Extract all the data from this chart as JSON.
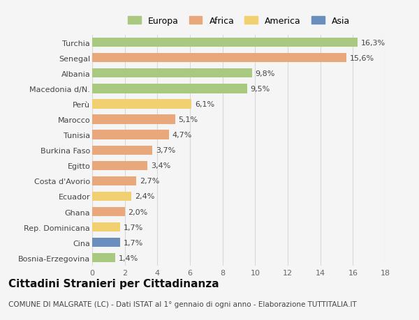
{
  "categories": [
    "Turchia",
    "Senegal",
    "Albania",
    "Macedonia d/N.",
    "Perù",
    "Marocco",
    "Tunisia",
    "Burkina Faso",
    "Egitto",
    "Costa d'Avorio",
    "Ecuador",
    "Ghana",
    "Rep. Dominicana",
    "Cina",
    "Bosnia-Erzegovina"
  ],
  "values": [
    16.3,
    15.6,
    9.8,
    9.5,
    6.1,
    5.1,
    4.7,
    3.7,
    3.4,
    2.7,
    2.4,
    2.0,
    1.7,
    1.7,
    1.4
  ],
  "labels": [
    "16,3%",
    "15,6%",
    "9,8%",
    "9,5%",
    "6,1%",
    "5,1%",
    "4,7%",
    "3,7%",
    "3,4%",
    "2,7%",
    "2,4%",
    "2,0%",
    "1,7%",
    "1,7%",
    "1,4%"
  ],
  "continent": [
    "Europa",
    "Africa",
    "Europa",
    "Europa",
    "America",
    "Africa",
    "Africa",
    "Africa",
    "Africa",
    "Africa",
    "America",
    "Africa",
    "America",
    "Asia",
    "Europa"
  ],
  "colors": {
    "Europa": "#a8c97f",
    "Africa": "#e8a87c",
    "America": "#f0d070",
    "Asia": "#6a8fbf"
  },
  "legend_order": [
    "Europa",
    "Africa",
    "America",
    "Asia"
  ],
  "xlim": [
    0,
    18
  ],
  "xticks": [
    0,
    2,
    4,
    6,
    8,
    10,
    12,
    14,
    16,
    18
  ],
  "title": "Cittadini Stranieri per Cittadinanza",
  "subtitle": "COMUNE DI MALGRATE (LC) - Dati ISTAT al 1° gennaio di ogni anno - Elaborazione TUTTITALIA.IT",
  "background_color": "#f5f5f5",
  "bar_height": 0.6,
  "grid_color": "#d8d8d8",
  "label_fontsize": 8,
  "tick_fontsize": 8,
  "title_fontsize": 11,
  "subtitle_fontsize": 7.5
}
